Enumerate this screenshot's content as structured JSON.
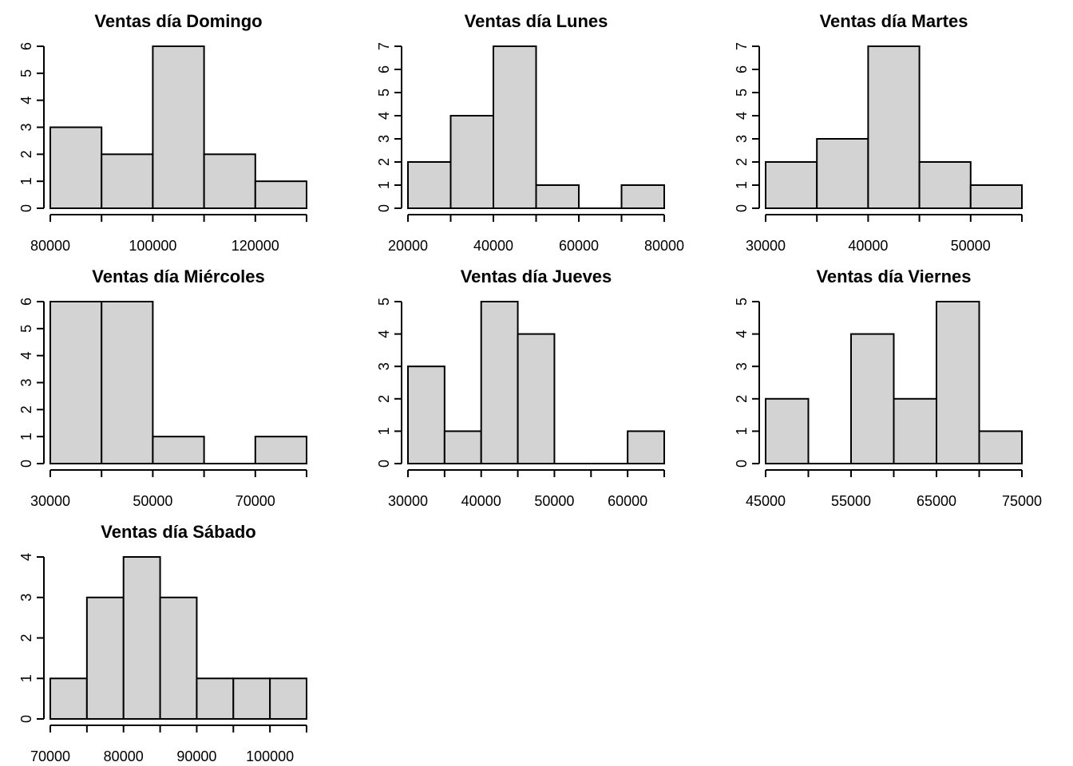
{
  "colors": {
    "bar_fill": "#d3d3d3",
    "bar_stroke": "#000000",
    "background": "#ffffff"
  },
  "chart_data": [
    {
      "type": "bar",
      "title": "Ventas día Domingo",
      "bins": [
        80000,
        90000,
        100000,
        110000,
        120000,
        130000
      ],
      "counts": [
        3,
        2,
        6,
        2,
        1
      ],
      "xticks": [
        80000,
        100000,
        120000
      ],
      "yticks": [
        0,
        1,
        2,
        3,
        4,
        5,
        6
      ],
      "ylim": [
        0,
        6
      ]
    },
    {
      "type": "bar",
      "title": "Ventas día Lunes",
      "bins": [
        20000,
        30000,
        40000,
        50000,
        60000,
        70000,
        80000
      ],
      "counts": [
        2,
        4,
        7,
        1,
        0,
        1
      ],
      "xticks": [
        20000,
        40000,
        60000,
        80000
      ],
      "yticks": [
        0,
        1,
        2,
        3,
        4,
        5,
        6,
        7
      ],
      "ylim": [
        0,
        7
      ]
    },
    {
      "type": "bar",
      "title": "Ventas día Martes",
      "bins": [
        30000,
        35000,
        40000,
        45000,
        50000,
        55000
      ],
      "counts": [
        2,
        3,
        7,
        2,
        1
      ],
      "xticks": [
        30000,
        40000,
        50000
      ],
      "yticks": [
        0,
        1,
        2,
        3,
        4,
        5,
        6,
        7
      ],
      "ylim": [
        0,
        7
      ]
    },
    {
      "type": "bar",
      "title": "Ventas día Miércoles",
      "bins": [
        30000,
        40000,
        50000,
        60000,
        70000,
        80000
      ],
      "counts": [
        6,
        6,
        1,
        0,
        1
      ],
      "xticks": [
        30000,
        50000,
        70000
      ],
      "yticks": [
        0,
        1,
        2,
        3,
        4,
        5,
        6
      ],
      "ylim": [
        0,
        6
      ]
    },
    {
      "type": "bar",
      "title": "Ventas día Jueves",
      "bins": [
        30000,
        35000,
        40000,
        45000,
        50000,
        55000,
        60000,
        65000
      ],
      "counts": [
        3,
        1,
        5,
        4,
        0,
        0,
        1
      ],
      "xticks": [
        30000,
        40000,
        50000,
        60000
      ],
      "yticks": [
        0,
        1,
        2,
        3,
        4,
        5
      ],
      "ylim": [
        0,
        5
      ]
    },
    {
      "type": "bar",
      "title": "Ventas día Viernes",
      "bins": [
        45000,
        50000,
        55000,
        60000,
        65000,
        70000,
        75000
      ],
      "counts": [
        2,
        0,
        4,
        2,
        5,
        1
      ],
      "xticks": [
        45000,
        55000,
        65000,
        75000
      ],
      "yticks": [
        0,
        1,
        2,
        3,
        4,
        5
      ],
      "ylim": [
        0,
        5
      ]
    },
    {
      "type": "bar",
      "title": "Ventas día Sábado",
      "bins": [
        70000,
        75000,
        80000,
        85000,
        90000,
        95000,
        100000,
        105000
      ],
      "counts": [
        1,
        3,
        4,
        3,
        1,
        1,
        1
      ],
      "xticks": [
        70000,
        80000,
        90000,
        100000
      ],
      "yticks": [
        0,
        1,
        2,
        3,
        4
      ],
      "ylim": [
        0,
        4
      ]
    }
  ]
}
